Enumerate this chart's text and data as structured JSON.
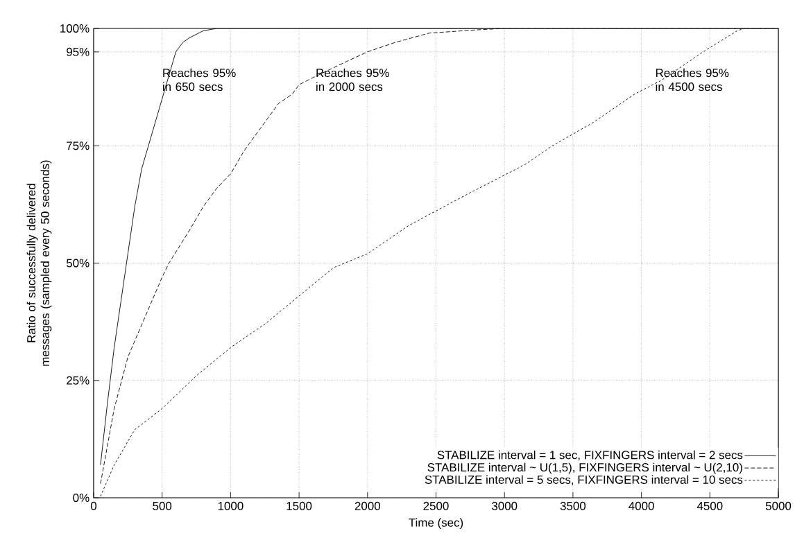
{
  "chart_data": {
    "type": "line",
    "xlabel": "Time (sec)",
    "ylabel": "Ratio of successfully delivered messages (sampled every 50 seconds)",
    "xlim": [
      0,
      5000
    ],
    "ylim": [
      0,
      100
    ],
    "xticks": [
      0,
      500,
      1000,
      1500,
      2000,
      2500,
      3000,
      3500,
      4000,
      4500,
      5000
    ],
    "yticks": [
      {
        "value": 0,
        "label": "0%"
      },
      {
        "value": 25,
        "label": "25%"
      },
      {
        "value": 50,
        "label": "50%"
      },
      {
        "value": 75,
        "label": "75%"
      },
      {
        "value": 95,
        "label": "95%"
      },
      {
        "value": 100,
        "label": "100%"
      }
    ],
    "grid": true,
    "legend": "bottom right",
    "marker": "none",
    "annotations": [
      "Reaches 95% in 650 secs",
      "Reaches 95% in 2000 secs",
      "Reaches 95% in 4500 secs"
    ],
    "series": [
      {
        "name": "STABILIZE interval = 1 sec, FIXFINGERS interval = 2 secs",
        "color": "#000000",
        "line_style": "solid",
        "x": [
          50,
          100,
          150,
          200,
          250,
          300,
          350,
          400,
          450,
          500,
          550,
          600,
          650,
          700,
          800,
          900,
          5000
        ],
        "values": [
          7,
          20,
          32,
          42,
          52,
          62,
          70,
          75,
          80,
          85,
          90,
          95,
          97,
          98,
          99.5,
          100,
          100
        ]
      },
      {
        "name": "STABILIZE interval ~ U(1,5), FIXFINGERS interval ~ U(2,10)",
        "color": "#000000",
        "line_style": "dashed",
        "x": [
          50,
          150,
          250,
          500,
          550,
          700,
          800,
          900,
          1000,
          1100,
          1150,
          1250,
          1350,
          1450,
          1500,
          1600,
          1850,
          2000,
          2200,
          2450,
          2800,
          3000,
          5000
        ],
        "values": [
          3,
          19,
          30,
          47,
          50,
          57,
          62,
          66,
          69,
          74,
          76,
          80,
          84,
          86,
          88,
          89.5,
          93,
          95,
          97,
          99,
          99.7,
          100,
          100
        ]
      },
      {
        "name": "STABILIZE interval = 5 secs, FIXFINGERS interval = 10 secs",
        "color": "#000000",
        "line_style": "dotted",
        "x": [
          50,
          150,
          300,
          500,
          750,
          1000,
          1250,
          1500,
          1750,
          2000,
          2300,
          2750,
          3150,
          3350,
          3650,
          3950,
          4150,
          4450,
          4700,
          4750,
          5000
        ],
        "values": [
          0.3,
          7,
          14.5,
          19,
          26,
          32,
          37,
          43,
          49,
          52,
          58,
          65,
          71,
          75,
          80,
          86,
          89,
          95,
          99.5,
          100,
          100
        ]
      }
    ]
  }
}
